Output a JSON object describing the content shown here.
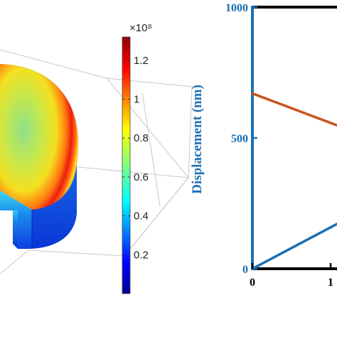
{
  "left_panel": {
    "colorbar": {
      "multiplier": "×10⁸",
      "ticks": [
        0.2,
        0.4,
        0.6,
        0.8,
        1,
        1.2
      ],
      "tick_labels": [
        "0.2",
        "0.4",
        "0.6",
        "0.8",
        "1",
        "1.2"
      ],
      "range": [
        0,
        1.32
      ],
      "colormap": "jet"
    }
  },
  "chart_data": {
    "type": "line",
    "ylabel": "Displacement (nm)",
    "ylim": [
      0,
      1000
    ],
    "yticks": [
      0,
      500,
      1000
    ],
    "ytick_labels": [
      "0",
      "500",
      "1000"
    ],
    "xticks": [
      0,
      1
    ],
    "xtick_labels": [
      "0",
      "1"
    ],
    "xlim_visible": [
      0,
      1.2
    ],
    "series": [
      {
        "color": "#1a6fb3",
        "x": [
          0,
          1.2
        ],
        "y": [
          0,
          190
        ]
      },
      {
        "color": "#c9551f",
        "x": [
          0,
          1.2
        ],
        "y": [
          670,
          535
        ]
      }
    ],
    "axis_color": "#1a6fb3",
    "frame_color": "#000000"
  }
}
